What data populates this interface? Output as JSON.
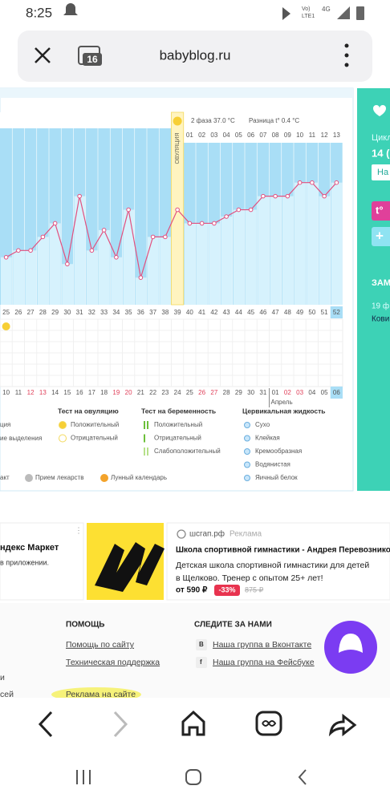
{
  "status_bar": {
    "time": "8:25",
    "volte": "Vo)",
    "lte": "LTE1",
    "net": "4G"
  },
  "browser": {
    "tabs": "16",
    "url": "babyblog.ru"
  },
  "chart": {
    "type": "line",
    "phase2": "2 фаза 37.0 °C",
    "difference": "Разница t° 0.4 °C",
    "ovulation": "ОВУЛЯЦИЯ",
    "days": [
      25,
      26,
      27,
      28,
      29,
      30,
      31,
      32,
      33,
      34,
      35,
      36,
      37,
      38,
      39,
      40,
      41,
      42,
      43,
      44,
      45,
      46,
      47,
      48,
      49,
      50,
      51,
      52
    ],
    "phase2_days": [
      "01",
      "02",
      "03",
      "04",
      "05",
      "06",
      "07",
      "08",
      "09",
      "10",
      "11",
      "12",
      "13"
    ],
    "values": [
      36.55,
      36.6,
      36.6,
      36.7,
      36.8,
      36.5,
      37.0,
      36.6,
      36.75,
      36.55,
      36.9,
      36.4,
      36.7,
      36.7,
      36.9,
      36.8,
      36.8,
      36.8,
      36.85,
      36.9,
      36.9,
      37.0,
      37.0,
      37.0,
      37.1,
      37.1,
      37.0,
      37.1
    ],
    "ylim": [
      36.2,
      37.5
    ],
    "color": "#e2507f",
    "dates": [
      {
        "text": "10"
      },
      {
        "text": "11"
      },
      {
        "text": "12",
        "red": true
      },
      {
        "text": "13",
        "red": true
      },
      {
        "text": "14"
      },
      {
        "text": "15"
      },
      {
        "text": "16"
      },
      {
        "text": "17"
      },
      {
        "text": "18"
      },
      {
        "text": "19",
        "red": true
      },
      {
        "text": "20",
        "red": true
      },
      {
        "text": "21"
      },
      {
        "text": "22"
      },
      {
        "text": "23"
      },
      {
        "text": "24"
      },
      {
        "text": "25"
      },
      {
        "text": "26",
        "red": true
      },
      {
        "text": "27",
        "red": true
      },
      {
        "text": "28"
      },
      {
        "text": "29"
      },
      {
        "text": "30"
      },
      {
        "text": "31"
      },
      {
        "text": "01"
      },
      {
        "text": "02",
        "red": true
      },
      {
        "text": "03",
        "red": true
      },
      {
        "text": "04"
      },
      {
        "text": "05"
      },
      {
        "text": "06"
      }
    ],
    "month": "Апрель"
  },
  "legend": {
    "col1": [
      "ция",
      "ие выделения"
    ],
    "ovulation_test": {
      "title": "Тест на овуляцию",
      "items": [
        "Положительный",
        "Отрицательный"
      ]
    },
    "pregnancy_test": {
      "title": "Тест на беременность",
      "items": [
        "Положительный",
        "Отрицательный",
        "Слабоположительный"
      ]
    },
    "cervical": {
      "title": "Цервикальная жидкость",
      "items": [
        "Сухо",
        "Клейкая",
        "Кремообразная",
        "Водянистая",
        "Яичный белок"
      ]
    },
    "bottom": [
      "акт",
      "Прием лекарств",
      "Лунный календарь"
    ]
  },
  "side_panel": {
    "cycle": "Цикл",
    "day": "14 (",
    "button": "На",
    "temp_button": "t°",
    "add": "+",
    "section": "ЗАМ",
    "date": "19 ф",
    "text": "Кови"
  },
  "ads": {
    "left_title": "ндекс Маркет",
    "left_text": "в приложении.",
    "domain": "шсгап.рф",
    "label": "Реклама",
    "title": "Школа спортивной гимнастики - Андрея Перевозникова!",
    "text1": "Детская школа спортивной гимнастики для детей",
    "text2": "в Щелково. Тренер с опытом 25+ лет!",
    "price": "от 590 ₽",
    "discount": "-33%",
    "old_price": "875 ₽"
  },
  "footer": {
    "help_title": "ПОМОЩЬ",
    "help1": "Помощь по сайту",
    "help2": "Техническая поддержка",
    "ads_link": "Реклама на сайте",
    "follow_title": "СЛЕДИТЕ ЗА НАМИ",
    "vk": "Наша группа в Вконтакте",
    "fb": "Наша группа на Фейсбуке",
    "left1": "и",
    "left2": "сей"
  }
}
